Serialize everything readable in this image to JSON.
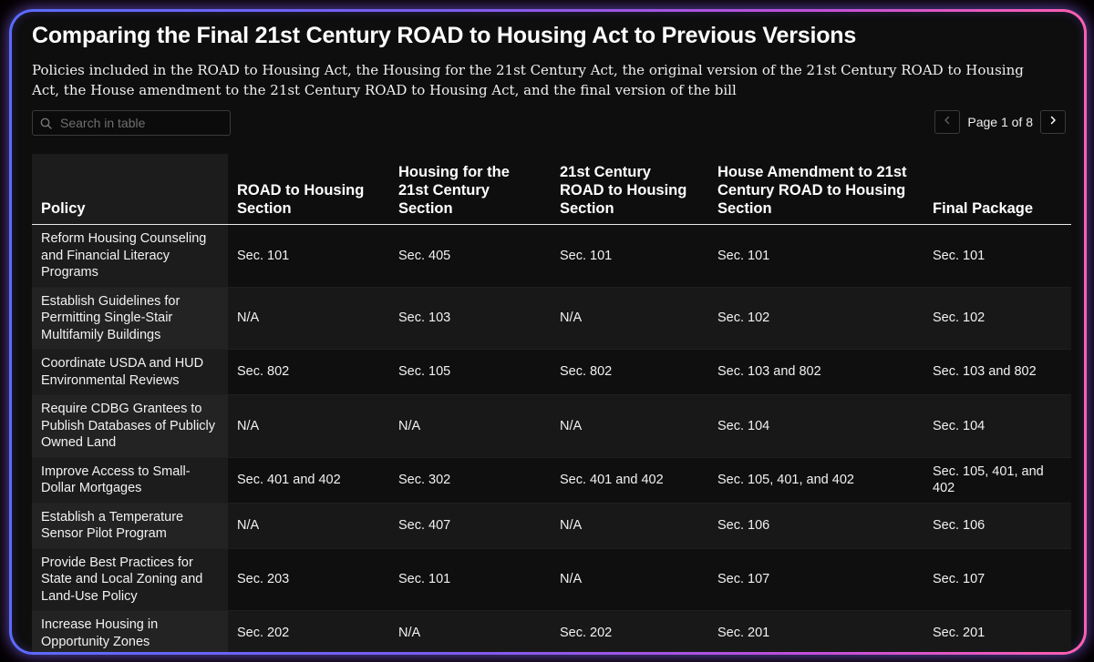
{
  "title": "Comparing the Final 21st Century ROAD to Housing Act to Previous Versions",
  "subtitle": "Policies included in the ROAD to Housing Act, the Housing for the 21st Century Act, the original version of the 21st Century ROAD to Housing Act, the House amendment to the 21st Century ROAD to Housing Act, and the final version of the bill",
  "search": {
    "placeholder": "Search in table",
    "value": "",
    "icon": "search-icon"
  },
  "pagination": {
    "label": "Page 1 of 8",
    "prev_icon": "chevron-left-icon",
    "next_icon": "chevron-right-icon"
  },
  "table": {
    "headers": [
      "Policy",
      "ROAD to Housing Section",
      "Housing for the 21st Century Section",
      "21st Century ROAD to Housing Section",
      "House Amendment to 21st Century ROAD to Housing Section",
      "Final Package"
    ],
    "rows": [
      [
        "Reform Housing Counseling and Financial Literacy Programs",
        "Sec. 101",
        "Sec. 405",
        "Sec. 101",
        "Sec. 101",
        "Sec. 101"
      ],
      [
        "Establish Guidelines for Permitting Single-Stair Multifamily Buildings",
        "N/A",
        "Sec. 103",
        "N/A",
        "Sec. 102",
        "Sec. 102"
      ],
      [
        "Coordinate USDA and HUD Environmental Reviews",
        "Sec. 802",
        "Sec. 105",
        "Sec. 802",
        "Sec. 103 and 802",
        "Sec. 103 and 802"
      ],
      [
        "Require CDBG Grantees to Publish Databases of Publicly Owned Land",
        "N/A",
        "N/A",
        "N/A",
        "Sec. 104",
        "Sec. 104"
      ],
      [
        "Improve Access to Small-Dollar Mortgages",
        "Sec. 401 and 402",
        "Sec. 302",
        "Sec. 401 and 402",
        "Sec. 105, 401, and 402",
        "Sec. 105, 401, and 402"
      ],
      [
        "Establish a Temperature Sensor Pilot Program",
        "N/A",
        "Sec. 407",
        "N/A",
        "Sec. 106",
        "Sec. 106"
      ],
      [
        "Provide Best Practices for State and Local Zoning and Land-Use Policy",
        "Sec. 203",
        "Sec. 101",
        "N/A",
        "Sec. 107",
        "Sec. 107"
      ],
      [
        "Increase Housing in Opportunity Zones",
        "Sec. 202",
        "N/A",
        "Sec. 202",
        "Sec. 201",
        "Sec. 201"
      ]
    ]
  },
  "colors": {
    "background": "#0e0e0e",
    "frame_gradient_start": "#5a6bff",
    "frame_gradient_end": "#ff5fae",
    "text": "#ffffff"
  }
}
